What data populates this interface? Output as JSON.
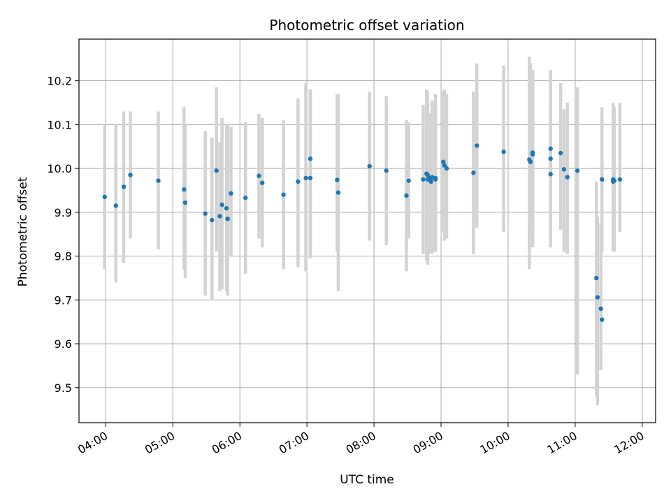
{
  "chart_data": {
    "type": "scatter",
    "title": "Photometric offset variation",
    "xlabel": "UTC time",
    "ylabel": "Photometric offset",
    "grid": true,
    "legend": "none",
    "colors": {
      "point": "#1f77b4",
      "errorbar": "#d3d3d3",
      "grid": "#b0b0b0"
    },
    "x_unit": "UTC time (HH:MM)",
    "xlim": [
      "03:36",
      "12:12"
    ],
    "ylim": [
      9.42,
      10.295
    ],
    "x_ticks": [
      "04:00",
      "05:00",
      "06:00",
      "07:00",
      "08:00",
      "09:00",
      "10:00",
      "11:00",
      "12:00"
    ],
    "y_ticks": [
      "9.5",
      "9.6",
      "9.7",
      "9.8",
      "9.9",
      "10.0",
      "10.1",
      "10.2"
    ],
    "series": [
      {
        "x": [
          "03:59",
          "04:09",
          "04:16",
          "04:22",
          "04:47",
          "05:10",
          "05:11",
          "05:29",
          "05:35",
          "05:39",
          "05:42",
          "05:44",
          "05:48",
          "05:49",
          "05:52",
          "06:05",
          "06:17",
          "06:20",
          "06:39",
          "06:52",
          "06:59",
          "07:03",
          "07:03",
          "07:27",
          "07:28",
          "07:56",
          "08:11",
          "08:29",
          "08:31",
          "08:44",
          "08:47",
          "08:48",
          "08:48",
          "08:50",
          "08:51",
          "08:51",
          "08:52",
          "08:55",
          "08:55",
          "09:02",
          "09:03",
          "09:05",
          "09:29",
          "09:32",
          "09:56",
          "10:19",
          "10:20",
          "10:22",
          "10:22",
          "10:38",
          "10:38",
          "10:38",
          "10:47",
          "10:50",
          "10:53",
          "11:02",
          "11:19",
          "11:20",
          "11:23",
          "11:24",
          "11:24",
          "11:34",
          "11:34",
          "11:35",
          "11:40"
        ],
        "y": [
          9.935,
          9.915,
          9.958,
          9.985,
          9.972,
          9.952,
          9.922,
          9.897,
          9.882,
          9.995,
          9.891,
          9.917,
          9.909,
          9.885,
          9.943,
          9.933,
          9.983,
          9.967,
          9.94,
          9.97,
          9.978,
          10.022,
          9.978,
          9.974,
          9.945,
          10.005,
          9.995,
          9.938,
          9.972,
          9.975,
          9.988,
          9.985,
          9.975,
          9.978,
          9.978,
          9.97,
          9.98,
          9.975,
          9.978,
          10.015,
          10.007,
          10.0,
          9.99,
          10.052,
          10.038,
          10.02,
          10.015,
          10.036,
          10.032,
          10.022,
          10.045,
          9.987,
          10.035,
          9.998,
          9.98,
          9.995,
          9.75,
          9.706,
          9.68,
          9.655,
          9.975,
          9.97,
          9.975,
          9.972,
          9.975
        ],
        "err_low": [
          9.77,
          9.74,
          9.785,
          9.84,
          9.815,
          9.77,
          9.75,
          9.71,
          9.7,
          9.81,
          9.72,
          9.725,
          9.72,
          9.71,
          9.8,
          9.76,
          9.84,
          9.82,
          9.77,
          9.775,
          9.765,
          9.795,
          9.795,
          9.81,
          9.72,
          9.835,
          9.825,
          9.765,
          9.84,
          9.805,
          9.79,
          9.78,
          9.795,
          9.805,
          9.82,
          9.82,
          9.805,
          9.81,
          9.81,
          9.855,
          9.835,
          9.84,
          9.805,
          9.865,
          9.855,
          9.77,
          9.865,
          9.85,
          9.82,
          9.88,
          9.82,
          9.875,
          9.86,
          9.81,
          9.805,
          9.53,
          9.48,
          9.46,
          9.54,
          9.81,
          9.84,
          9.81,
          9.855,
          9.81,
          9.855
        ],
        "err_high": [
          10.1,
          10.1,
          10.13,
          10.13,
          10.13,
          10.14,
          10.1,
          10.085,
          10.07,
          10.185,
          10.06,
          10.115,
          10.1,
          10.1,
          10.095,
          10.105,
          10.125,
          10.115,
          10.11,
          10.16,
          10.195,
          10.18,
          10.18,
          10.17,
          10.17,
          10.175,
          10.165,
          10.11,
          10.105,
          10.145,
          10.18,
          10.175,
          10.155,
          10.125,
          10.125,
          10.1,
          10.155,
          10.17,
          10.155,
          10.175,
          10.18,
          10.17,
          10.175,
          10.24,
          10.235,
          10.255,
          10.24,
          10.225,
          10.215,
          10.225,
          10.21,
          10.145,
          10.195,
          10.135,
          10.15,
          10.185,
          9.97,
          9.89,
          9.875,
          9.85,
          10.14,
          10.13,
          10.15,
          10.14,
          10.15
        ]
      }
    ]
  }
}
